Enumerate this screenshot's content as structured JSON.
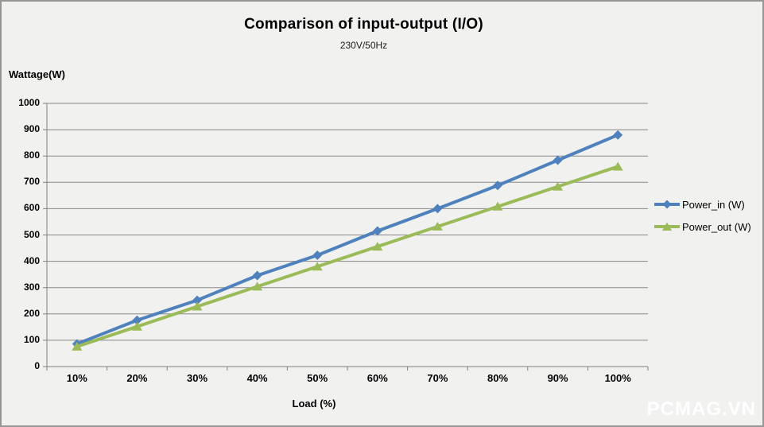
{
  "watermark": {
    "text": "PCMAG.VN"
  },
  "chart_data": {
    "type": "line",
    "title": "Comparison of input-output (I/O)",
    "subtitle": "230V/50Hz",
    "xlabel": "Load (%)",
    "ylabel": "Wattage(W)",
    "categories": [
      "10%",
      "20%",
      "30%",
      "40%",
      "50%",
      "60%",
      "70%",
      "80%",
      "90%",
      "100%"
    ],
    "yticks": [
      0,
      100,
      200,
      300,
      400,
      500,
      600,
      700,
      800,
      900,
      1000
    ],
    "ylim": [
      0,
      1000
    ],
    "grid": "horizontal",
    "grid_color": "#878787",
    "axis_color": "#808080",
    "background_color": "#f1f1f0",
    "legend_position": "right",
    "series": [
      {
        "name": "Power_in (W)",
        "color": "#4f81bd",
        "marker": "diamond",
        "values": [
          86,
          176,
          252,
          346,
          423,
          515,
          600,
          688,
          784,
          880
        ]
      },
      {
        "name": "Power_out (W)",
        "color": "#9bbb59",
        "marker": "triangle",
        "values": [
          76,
          152,
          228,
          304,
          380,
          456,
          532,
          608,
          684,
          760
        ]
      }
    ]
  }
}
